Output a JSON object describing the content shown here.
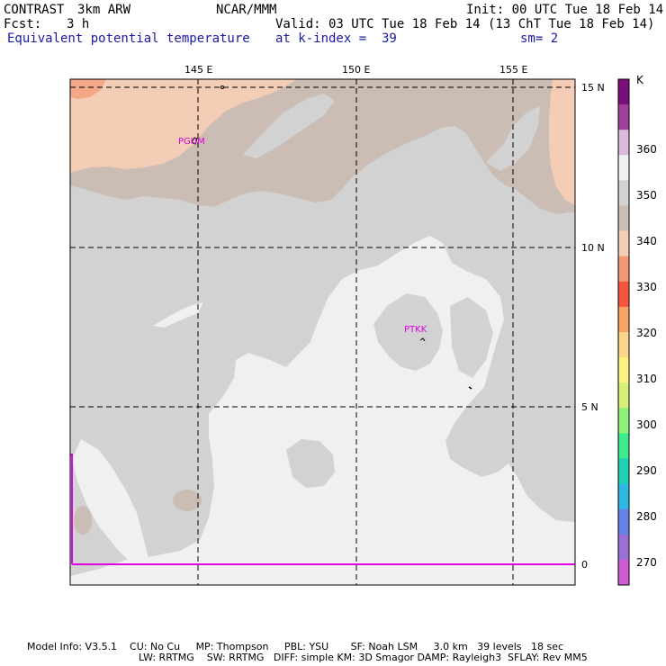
{
  "header": {
    "model": "CONTRAST",
    "model_res": "3km ARW",
    "center": "NCAR/MMM",
    "init": "Init: 00 UTC Tue 18 Feb 14",
    "fcst_label": "Fcst:",
    "fcst_value": "3 h",
    "valid": "Valid: 03 UTC Tue 18 Feb 14 (13 ChT Tue 18 Feb 14)",
    "field": "Equivalent potential temperature",
    "level": "at k-index =  39",
    "smoothing": "sm= 2"
  },
  "map": {
    "lon_labels": [
      "145 E",
      "150 E",
      "155 E"
    ],
    "lat_labels": [
      "15 N",
      "10 N",
      "5 N",
      "0"
    ],
    "stations": [
      "PGUM",
      "PTKK"
    ]
  },
  "colorbar": {
    "unit": "K",
    "labels": [
      "360",
      "350",
      "340",
      "330",
      "320",
      "310",
      "300",
      "290",
      "280",
      "270"
    ],
    "colors": [
      "#7a0f7a",
      "#a0409b",
      "#dcb8dc",
      "#f0f0f0",
      "#d2d2d2",
      "#cbbdb3",
      "#f3cdb6",
      "#f29a76",
      "#f8543e",
      "#f7a564",
      "#fbd68a",
      "#fbf17e",
      "#d5ef7a",
      "#8ff07a",
      "#3cec8c",
      "#1ed1b4",
      "#2fb8e3",
      "#6583e6",
      "#9a6fd6",
      "#cc5ccf"
    ]
  },
  "footer": {
    "line1": "Model Info: V3.5.1    CU: No Cu     MP: Thompson     PBL: YSU       SF: Noah LSM     3.0 km   39 levels   18 sec",
    "line2": "LW: RRTMG    SW: RRTMG   DIFF: simple KM: 3D Smagor DAMP: Rayleigh3  SFLAY: Rev MM5"
  }
}
